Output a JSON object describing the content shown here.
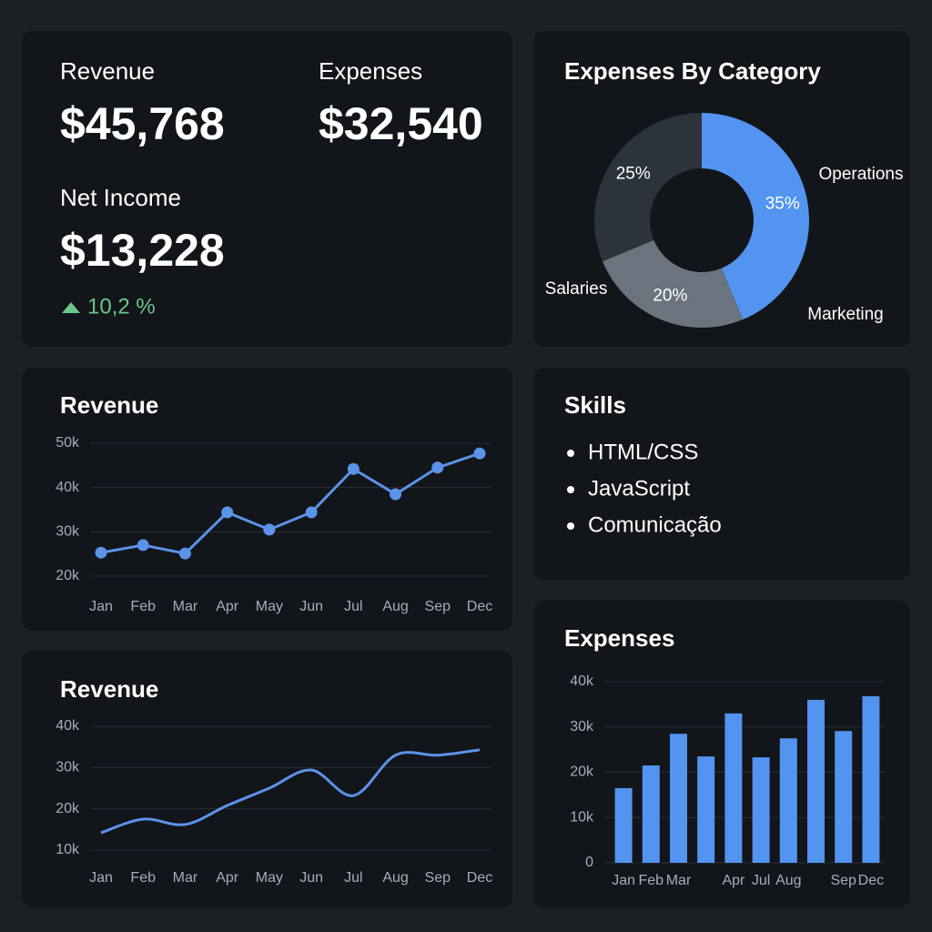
{
  "kpis": [
    {
      "label": "Revenue",
      "value": "$45,768"
    },
    {
      "label": "Expenses",
      "value": "$32,540"
    },
    {
      "label": "Net Income",
      "value": "$13,228",
      "change": "10,2 %"
    }
  ],
  "skills": {
    "title": "Skills",
    "items": [
      "HTML/CSS",
      "JavaScript",
      "Comunicação"
    ]
  },
  "chart_data": [
    {
      "type": "donut",
      "title": "Expenses By Category",
      "categories": [
        "Marketing",
        "Salaries",
        "Operations"
      ],
      "values": [
        35,
        20,
        25
      ],
      "value_labels": [
        "35%",
        "20%",
        "25%"
      ],
      "colors": [
        "#5294f0",
        "#6b737e",
        "#2d333c"
      ]
    },
    {
      "type": "line",
      "title": "Revenue",
      "categories": [
        "Jan",
        "Feb",
        "Mar",
        "Apr",
        "May",
        "Jun",
        "Jul",
        "Aug",
        "Sep",
        "Dec"
      ],
      "values": [
        25300,
        27000,
        25100,
        34400,
        30500,
        34400,
        44200,
        38500,
        44500,
        47700
      ],
      "color": "#5b93e8",
      "markers": true,
      "smooth": false,
      "grid": true,
      "ylim": [
        20000,
        50000
      ],
      "yticks": [
        {
          "value": 20000,
          "label": "20k"
        },
        {
          "value": 30000,
          "label": "30k"
        },
        {
          "value": 40000,
          "label": "40k"
        },
        {
          "value": 50000,
          "label": "50k"
        }
      ]
    },
    {
      "type": "line",
      "title": "Revenue",
      "categories": [
        "Jan",
        "Feb",
        "Mar",
        "Apr",
        "May",
        "Jun",
        "Jul",
        "Aug",
        "Sep",
        "Dec"
      ],
      "values": [
        14200,
        17500,
        16200,
        20800,
        25000,
        29400,
        23200,
        33000,
        33000,
        34300
      ],
      "color": "#5b93e8",
      "markers": false,
      "smooth": true,
      "grid": true,
      "ylim": [
        10000,
        40000
      ],
      "yticks": [
        {
          "value": 10000,
          "label": "10k"
        },
        {
          "value": 20000,
          "label": "20k"
        },
        {
          "value": 30000,
          "label": "30k"
        },
        {
          "value": 40000,
          "label": "40k"
        }
      ]
    },
    {
      "type": "bar",
      "title": "Expenses",
      "categories": [
        "Jan",
        "Feb",
        "Mar",
        null,
        "Apr",
        "Jul",
        "Aug",
        null,
        "Sep",
        "Dec"
      ],
      "values": [
        16500,
        21500,
        28500,
        23500,
        33000,
        23300,
        27500,
        36000,
        29100,
        36800
      ],
      "color": "#5294f0",
      "grid": true,
      "ylim": [
        0,
        40000
      ],
      "yticks": [
        0,
        {
          "value": 10000,
          "label": "10k"
        },
        {
          "value": 20000,
          "label": "20k"
        },
        {
          "value": 30000,
          "label": "30k"
        },
        {
          "value": 40000,
          "label": "40k"
        }
      ]
    }
  ]
}
